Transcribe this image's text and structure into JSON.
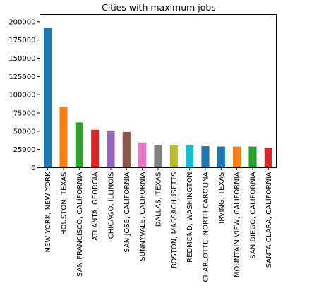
{
  "chart_data": {
    "type": "bar",
    "title": "Cities with maximum jobs",
    "xlabel": "",
    "ylabel": "",
    "ylim": [
      0,
      210000
    ],
    "yticks": [
      0,
      25000,
      50000,
      75000,
      100000,
      125000,
      150000,
      175000,
      200000
    ],
    "ytick_labels": [
      "0",
      "25000",
      "50000",
      "75000",
      "100000",
      "125000",
      "150000",
      "175000",
      "200000"
    ],
    "categories": [
      "NEW YORK, NEW YORK",
      "HOUSTON, TEXAS",
      "SAN FRANCISCO, CALIFORNIA",
      "ATLANTA, GEORGIA",
      "CHICAGO, ILLINOIS",
      "SAN JOSE, CALIFORNIA",
      "SUNNYVALE, CALIFORNIA",
      "DALLAS, TEXAS",
      "BOSTON, MASSACHUSETTS",
      "REDMOND, WASHINGTON",
      "CHARLOTTE, NORTH CAROLINA",
      "IRVING, TEXAS",
      "MOUNTAIN VIEW, CALIFORNIA",
      "SAN DIEGO, CALIFORNIA",
      "SANTA CLARA, CALIFORNIA"
    ],
    "values": [
      191500,
      83500,
      62000,
      52000,
      51000,
      49000,
      34500,
      31500,
      30500,
      30500,
      29500,
      29000,
      29000,
      29000,
      27500
    ],
    "colors": [
      "#1f77b4",
      "#ff7f0e",
      "#2ca02c",
      "#d62728",
      "#9467bd",
      "#8c564b",
      "#e377c2",
      "#7f7f7f",
      "#bcbd22",
      "#17becf",
      "#1f77b4",
      "#1f77b4",
      "#ff7f0e",
      "#2ca02c",
      "#d62728"
    ],
    "grid": false,
    "legend": "none"
  }
}
